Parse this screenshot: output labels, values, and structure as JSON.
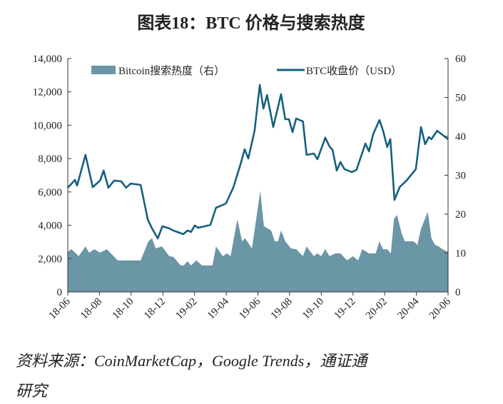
{
  "title": "图表18：BTC 价格与搜索热度",
  "source_line1": "资料来源：CoinMarketCap，Google Trends，通证通",
  "source_line2": "研究",
  "colors": {
    "area": "#6a96a6",
    "line": "#16607f",
    "axis": "#333333"
  },
  "chart_data": {
    "type": "line+area",
    "title": "图表18：BTC 价格与搜索热度",
    "xlim": [
      "2018-06-01",
      "2020-06-01"
    ],
    "x_tick_labels": [
      "18-06",
      "18-08",
      "18-10",
      "18-12",
      "19-02",
      "19-04",
      "19-06",
      "19-08",
      "19-10",
      "19-12",
      "20-02",
      "20-04",
      "20-06"
    ],
    "y_left": {
      "lim": [
        0,
        14000
      ],
      "tick_labels": [
        "0",
        "2,000",
        "4,000",
        "6,000",
        "8,000",
        "10,000",
        "12,000",
        "14,000"
      ]
    },
    "y_right": {
      "lim": [
        0,
        60
      ],
      "tick_labels": [
        "0",
        "10",
        "20",
        "30",
        "40",
        "50",
        "60"
      ]
    },
    "grid": false,
    "legend_placement": "top",
    "series": [
      {
        "name": "Bitcoin搜索热度（右）",
        "type": "area",
        "axis": "right",
        "x": [
          "2018-06-01",
          "2018-06-08",
          "2018-06-22",
          "2018-07-05",
          "2018-07-12",
          "2018-07-22",
          "2018-08-02",
          "2018-08-15",
          "2018-09-05",
          "2018-10-19",
          "2018-11-03",
          "2018-11-10",
          "2018-11-17",
          "2018-11-29",
          "2018-12-13",
          "2018-12-21",
          "2019-01-04",
          "2019-01-10",
          "2019-01-17",
          "2019-01-24",
          "2019-02-03",
          "2019-02-14",
          "2019-03-06",
          "2019-03-13",
          "2019-03-26",
          "2019-04-03",
          "2019-04-10",
          "2019-04-23",
          "2019-05-02",
          "2019-05-08",
          "2019-05-21",
          "2019-06-06",
          "2019-06-13",
          "2019-06-27",
          "2019-07-04",
          "2019-07-10",
          "2019-07-16",
          "2019-07-24",
          "2019-08-04",
          "2019-08-14",
          "2019-08-27",
          "2019-09-03",
          "2019-09-17",
          "2019-09-24",
          "2019-10-01",
          "2019-10-09",
          "2019-10-17",
          "2019-10-28",
          "2019-11-07",
          "2019-11-20",
          "2019-12-01",
          "2019-12-11",
          "2019-12-19",
          "2020-01-01",
          "2020-01-14",
          "2020-01-21",
          "2020-01-28",
          "2020-02-05",
          "2020-02-12",
          "2020-02-18",
          "2020-02-24",
          "2020-03-04",
          "2020-03-10",
          "2020-03-27",
          "2020-04-03",
          "2020-04-10",
          "2020-04-23",
          "2020-04-30",
          "2020-05-07",
          "2020-05-14",
          "2020-05-21",
          "2020-06-01"
        ],
        "values": [
          10.3,
          11.0,
          9.2,
          11.7,
          10.1,
          11.0,
          10.1,
          11.0,
          8.1,
          8.1,
          13.0,
          13.8,
          11.2,
          11.7,
          9.2,
          9.0,
          6.8,
          6.8,
          7.9,
          6.8,
          8.1,
          6.8,
          6.8,
          11.7,
          9.2,
          9.9,
          9.2,
          18.7,
          13.0,
          13.8,
          11.2,
          25.9,
          16.9,
          15.8,
          13.0,
          13.0,
          15.8,
          13.0,
          11.2,
          11.0,
          9.2,
          11.7,
          9.2,
          9.9,
          9.2,
          11.0,
          9.2,
          9.9,
          9.9,
          8.1,
          9.2,
          8.1,
          11.0,
          9.9,
          9.9,
          13.0,
          11.0,
          11.0,
          9.9,
          18.7,
          19.8,
          14.9,
          13.0,
          13.0,
          12.1,
          16.3,
          20.6,
          13.8,
          12.1,
          11.7,
          11.0,
          10.3
        ]
      },
      {
        "name": "BTC收盘价（USD）",
        "type": "line",
        "axis": "left",
        "x": [
          "2018-06-01",
          "2018-06-15",
          "2018-06-19",
          "2018-07-05",
          "2018-07-19",
          "2018-08-02",
          "2018-08-09",
          "2018-08-18",
          "2018-08-29",
          "2018-09-12",
          "2018-09-21",
          "2018-09-30",
          "2018-10-19",
          "2018-11-02",
          "2018-11-10",
          "2018-11-21",
          "2018-11-30",
          "2018-12-13",
          "2018-12-21",
          "2019-01-09",
          "2019-01-17",
          "2019-01-24",
          "2019-01-31",
          "2019-02-07",
          "2019-03-02",
          "2019-03-13",
          "2019-03-23",
          "2019-04-01",
          "2019-04-15",
          "2019-04-29",
          "2019-05-07",
          "2019-05-14",
          "2019-05-26",
          "2019-06-05",
          "2019-06-12",
          "2019-06-19",
          "2019-07-01",
          "2019-07-16",
          "2019-07-24",
          "2019-07-31",
          "2019-08-07",
          "2019-08-14",
          "2019-08-27",
          "2019-09-03",
          "2019-09-17",
          "2019-09-24",
          "2019-10-09",
          "2019-10-17",
          "2019-10-23",
          "2019-10-31",
          "2019-11-07",
          "2019-11-15",
          "2019-11-29",
          "2019-12-08",
          "2019-12-25",
          "2020-01-01",
          "2020-01-09",
          "2020-01-21",
          "2020-01-28",
          "2020-02-05",
          "2020-02-11",
          "2020-02-19",
          "2020-02-29",
          "2020-03-13",
          "2020-03-31",
          "2020-04-10",
          "2020-04-18",
          "2020-04-25",
          "2020-04-30",
          "2020-05-11",
          "2020-06-01"
        ],
        "values": [
          6250,
          6720,
          6380,
          8220,
          6290,
          6680,
          7280,
          6250,
          6680,
          6630,
          6250,
          6500,
          6420,
          4320,
          3810,
          3210,
          3940,
          3810,
          3680,
          3470,
          3680,
          3600,
          3980,
          3850,
          4020,
          5050,
          5180,
          5310,
          6250,
          7660,
          8560,
          8000,
          9670,
          12410,
          11000,
          11810,
          9890,
          11860,
          10360,
          10360,
          9590,
          10400,
          10230,
          8220,
          8300,
          7960,
          9250,
          8730,
          8520,
          7280,
          7790,
          7360,
          7190,
          7320,
          8900,
          8430,
          9460,
          10310,
          9670,
          8690,
          9160,
          5520,
          6290,
          6680,
          7360,
          9890,
          8860,
          9290,
          9160,
          9670,
          9160
        ]
      }
    ]
  }
}
